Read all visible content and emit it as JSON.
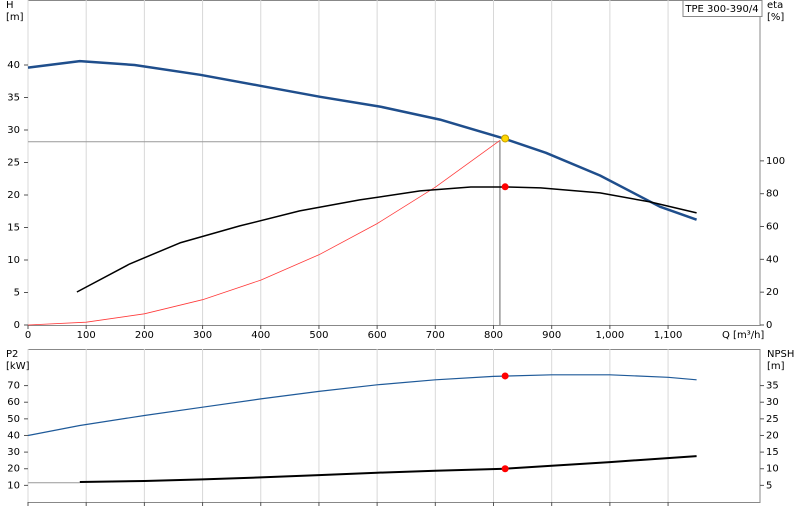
{
  "chart_data": [
    {
      "type": "line",
      "title": "TPE 300-390/4",
      "y_label": [
        "H",
        "[m]"
      ],
      "y2_label": [
        "eta",
        "[%]"
      ],
      "x_label": "Q [m³/h]",
      "xlim": [
        0,
        1258
      ],
      "xticks": [
        0,
        100,
        200,
        300,
        400,
        500,
        600,
        700,
        800,
        900,
        {
          "value": 1000,
          "label": "1,000"
        },
        {
          "value": 1100,
          "label": "1,100"
        }
      ],
      "show_xtick_labels": true,
      "ylim": [
        0,
        50
      ],
      "yticks": [
        0,
        5,
        10,
        15,
        20,
        25,
        30,
        35,
        40
      ],
      "y2lim": [
        0,
        198
      ],
      "y2ticks": [
        0,
        20,
        40,
        60,
        80,
        100
      ],
      "grid": "x",
      "series": [
        {
          "color": "#999999",
          "width": 1,
          "x": [
            0,
            811
          ],
          "values": [
            28.2,
            28.2
          ]
        },
        {
          "color": "#999999",
          "width": 1.5,
          "x": [
            811,
            811
          ],
          "values": [
            0,
            28.4
          ]
        },
        {
          "color": "#ff3b3b",
          "width": 0.8,
          "x": [
            0,
            100,
            200,
            300,
            400,
            500,
            600,
            700,
            811
          ],
          "values": [
            0,
            0.43,
            1.73,
            3.89,
            6.91,
            10.8,
            15.6,
            21.2,
            28.4
          ]
        },
        {
          "color": "#1f4e8c",
          "width": 2.5,
          "x": [
            0,
            89,
            183,
            296,
            399,
            502,
            605,
            708,
            814,
            890,
            983,
            1086,
            1149
          ],
          "values": [
            39.6,
            40.6,
            40.0,
            38.5,
            36.8,
            35.1,
            33.6,
            31.6,
            28.8,
            26.5,
            23.0,
            18.2,
            16.2
          ]
        },
        {
          "color": "#000000",
          "width": 1.5,
          "axis": "y2",
          "x": [
            84,
            175,
            261,
            364,
            467,
            570,
            674,
            761,
            821,
            881,
            983,
            1069,
            1149
          ],
          "values": [
            20.1,
            37.2,
            50,
            60.4,
            69.5,
            76.2,
            81.7,
            84.1,
            84.1,
            83.5,
            80.5,
            75,
            68.3
          ]
        },
        {
          "style": "point",
          "color": "#ffd700",
          "x": [
            820
          ],
          "values": [
            28.7
          ]
        },
        {
          "style": "point",
          "color": "#ff0000",
          "axis": "y2",
          "x": [
            820
          ],
          "values": [
            84.2
          ]
        }
      ]
    },
    {
      "type": "line",
      "y_label": [
        "P2",
        "[kW]"
      ],
      "y2_label": [
        "NPSH",
        "[m]"
      ],
      "xlim": [
        0,
        1258
      ],
      "xticks": [
        0,
        100,
        200,
        300,
        400,
        500,
        600,
        700,
        800,
        900,
        1000,
        1100
      ],
      "show_xtick_labels": false,
      "ylim": [
        0,
        92
      ],
      "yticks": [
        10,
        20,
        30,
        40,
        50,
        60,
        70
      ],
      "y2lim": [
        0,
        46
      ],
      "y2ticks": [
        5,
        10,
        15,
        20,
        25,
        30,
        35
      ],
      "grid": "x",
      "series": [
        {
          "color": "#999999",
          "width": 1,
          "axis": "y2",
          "x": [
            0,
            89
          ],
          "values": [
            5.8,
            5.8
          ]
        },
        {
          "color": "#1f5a99",
          "width": 1.2,
          "x": [
            0,
            89,
            200,
            300,
            400,
            500,
            600,
            700,
            800,
            900,
            1000,
            1100,
            1149
          ],
          "values": [
            40,
            46,
            52,
            57,
            62,
            66.5,
            70.5,
            73.5,
            75.5,
            76.5,
            76.5,
            75,
            73.5
          ]
        },
        {
          "color": "#000000",
          "width": 2,
          "axis": "y2",
          "x": [
            89,
            200,
            300,
            400,
            500,
            600,
            700,
            820,
            900,
            1000,
            1149
          ],
          "values": [
            6.0,
            6.3,
            6.8,
            7.4,
            8.1,
            8.8,
            9.4,
            10.0,
            10.9,
            12.0,
            13.8
          ]
        },
        {
          "style": "point",
          "color": "#ff0000",
          "x": [
            820
          ],
          "values": [
            75.8
          ]
        },
        {
          "style": "point",
          "color": "#ff0000",
          "axis": "y2",
          "x": [
            820
          ],
          "values": [
            10.0
          ]
        }
      ]
    }
  ]
}
